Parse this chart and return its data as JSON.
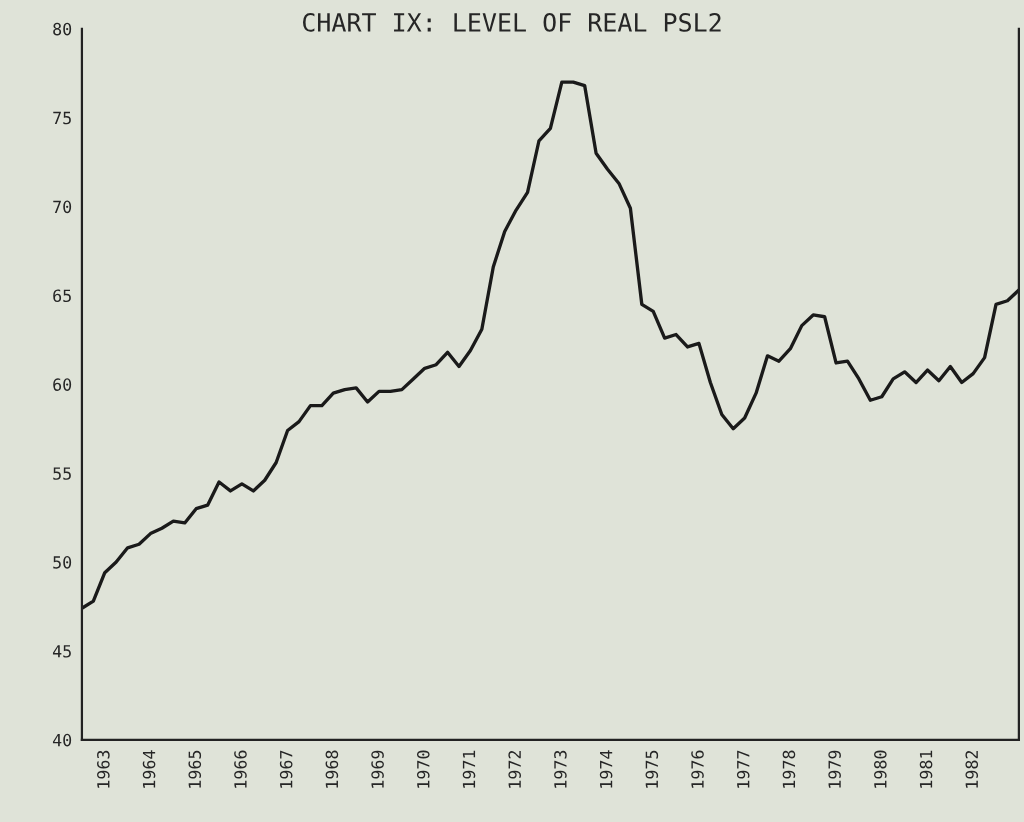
{
  "chart_data": {
    "type": "line",
    "title": "CHART IX: LEVEL OF REAL PSL2",
    "x": [
      1963.0,
      1963.25,
      1963.5,
      1963.75,
      1964.0,
      1964.25,
      1964.5,
      1964.75,
      1965.0,
      1965.25,
      1965.5,
      1965.75,
      1966.0,
      1966.25,
      1966.5,
      1966.75,
      1967.0,
      1967.25,
      1967.5,
      1967.75,
      1968.0,
      1968.25,
      1968.5,
      1968.75,
      1969.0,
      1969.25,
      1969.5,
      1969.75,
      1970.0,
      1970.25,
      1970.5,
      1970.75,
      1971.0,
      1971.25,
      1971.5,
      1971.75,
      1972.0,
      1972.25,
      1972.5,
      1972.75,
      1973.0,
      1973.25,
      1973.5,
      1973.75,
      1974.0,
      1974.25,
      1974.5,
      1974.75,
      1975.0,
      1975.25,
      1975.5,
      1975.75,
      1976.0,
      1976.25,
      1976.5,
      1976.75,
      1977.0,
      1977.25,
      1977.5,
      1977.75,
      1978.0,
      1978.25,
      1978.5,
      1978.75,
      1979.0,
      1979.25,
      1979.5,
      1979.75,
      1980.0,
      1980.25,
      1980.5,
      1980.75,
      1981.0,
      1981.25,
      1981.5,
      1981.75,
      1982.0,
      1982.25,
      1982.5,
      1982.75,
      1983.0,
      1983.25,
      1983.5
    ],
    "series": [
      {
        "color": "#1a1a1a",
        "values": [
          47.4,
          47.8,
          49.4,
          50.0,
          50.8,
          51.0,
          51.6,
          51.9,
          52.3,
          52.2,
          53.0,
          53.2,
          54.5,
          54.0,
          54.4,
          54.0,
          54.6,
          55.6,
          57.4,
          57.9,
          58.8,
          58.8,
          59.5,
          59.7,
          59.8,
          59.0,
          59.6,
          59.6,
          59.7,
          60.3,
          60.9,
          61.1,
          61.8,
          61.0,
          61.9,
          63.1,
          66.6,
          68.6,
          69.8,
          70.8,
          73.7,
          74.4,
          77.0,
          77.0,
          76.8,
          73.0,
          72.1,
          71.3,
          69.9,
          64.5,
          64.1,
          62.6,
          62.8,
          62.1,
          62.3,
          60.1,
          58.3,
          57.5,
          58.1,
          59.5,
          61.6,
          61.3,
          62.0,
          63.3,
          63.9,
          63.8,
          61.2,
          61.3,
          60.3,
          59.1,
          59.3,
          60.3,
          60.7,
          60.1,
          60.8,
          60.2,
          61.0,
          60.1,
          60.6,
          61.5,
          64.5,
          64.7,
          65.3
        ]
      }
    ],
    "xlim": [
      1963.0,
      1983.5
    ],
    "xticks": [
      {
        "value": 1963.5,
        "label": "1963"
      },
      {
        "value": 1964.5,
        "label": "1964"
      },
      {
        "value": 1965.5,
        "label": "1965"
      },
      {
        "value": 1966.5,
        "label": "1966"
      },
      {
        "value": 1967.5,
        "label": "1967"
      },
      {
        "value": 1968.5,
        "label": "1968"
      },
      {
        "value": 1969.5,
        "label": "1969"
      },
      {
        "value": 1970.5,
        "label": "1970"
      },
      {
        "value": 1971.5,
        "label": "1971"
      },
      {
        "value": 1972.5,
        "label": "1972"
      },
      {
        "value": 1973.5,
        "label": "1973"
      },
      {
        "value": 1974.5,
        "label": "1974"
      },
      {
        "value": 1975.5,
        "label": "1975"
      },
      {
        "value": 1976.5,
        "label": "1976"
      },
      {
        "value": 1977.5,
        "label": "1977"
      },
      {
        "value": 1978.5,
        "label": "1978"
      },
      {
        "value": 1979.5,
        "label": "1979"
      },
      {
        "value": 1980.5,
        "label": "1980"
      },
      {
        "value": 1981.5,
        "label": "1981"
      },
      {
        "value": 1982.5,
        "label": "1982"
      }
    ],
    "ylim": [
      40,
      80
    ],
    "yticks": [
      40,
      45,
      50,
      55,
      60,
      65,
      70,
      75,
      80
    ],
    "grid": false,
    "legend": false,
    "marker": "none",
    "line_style": "solid"
  }
}
